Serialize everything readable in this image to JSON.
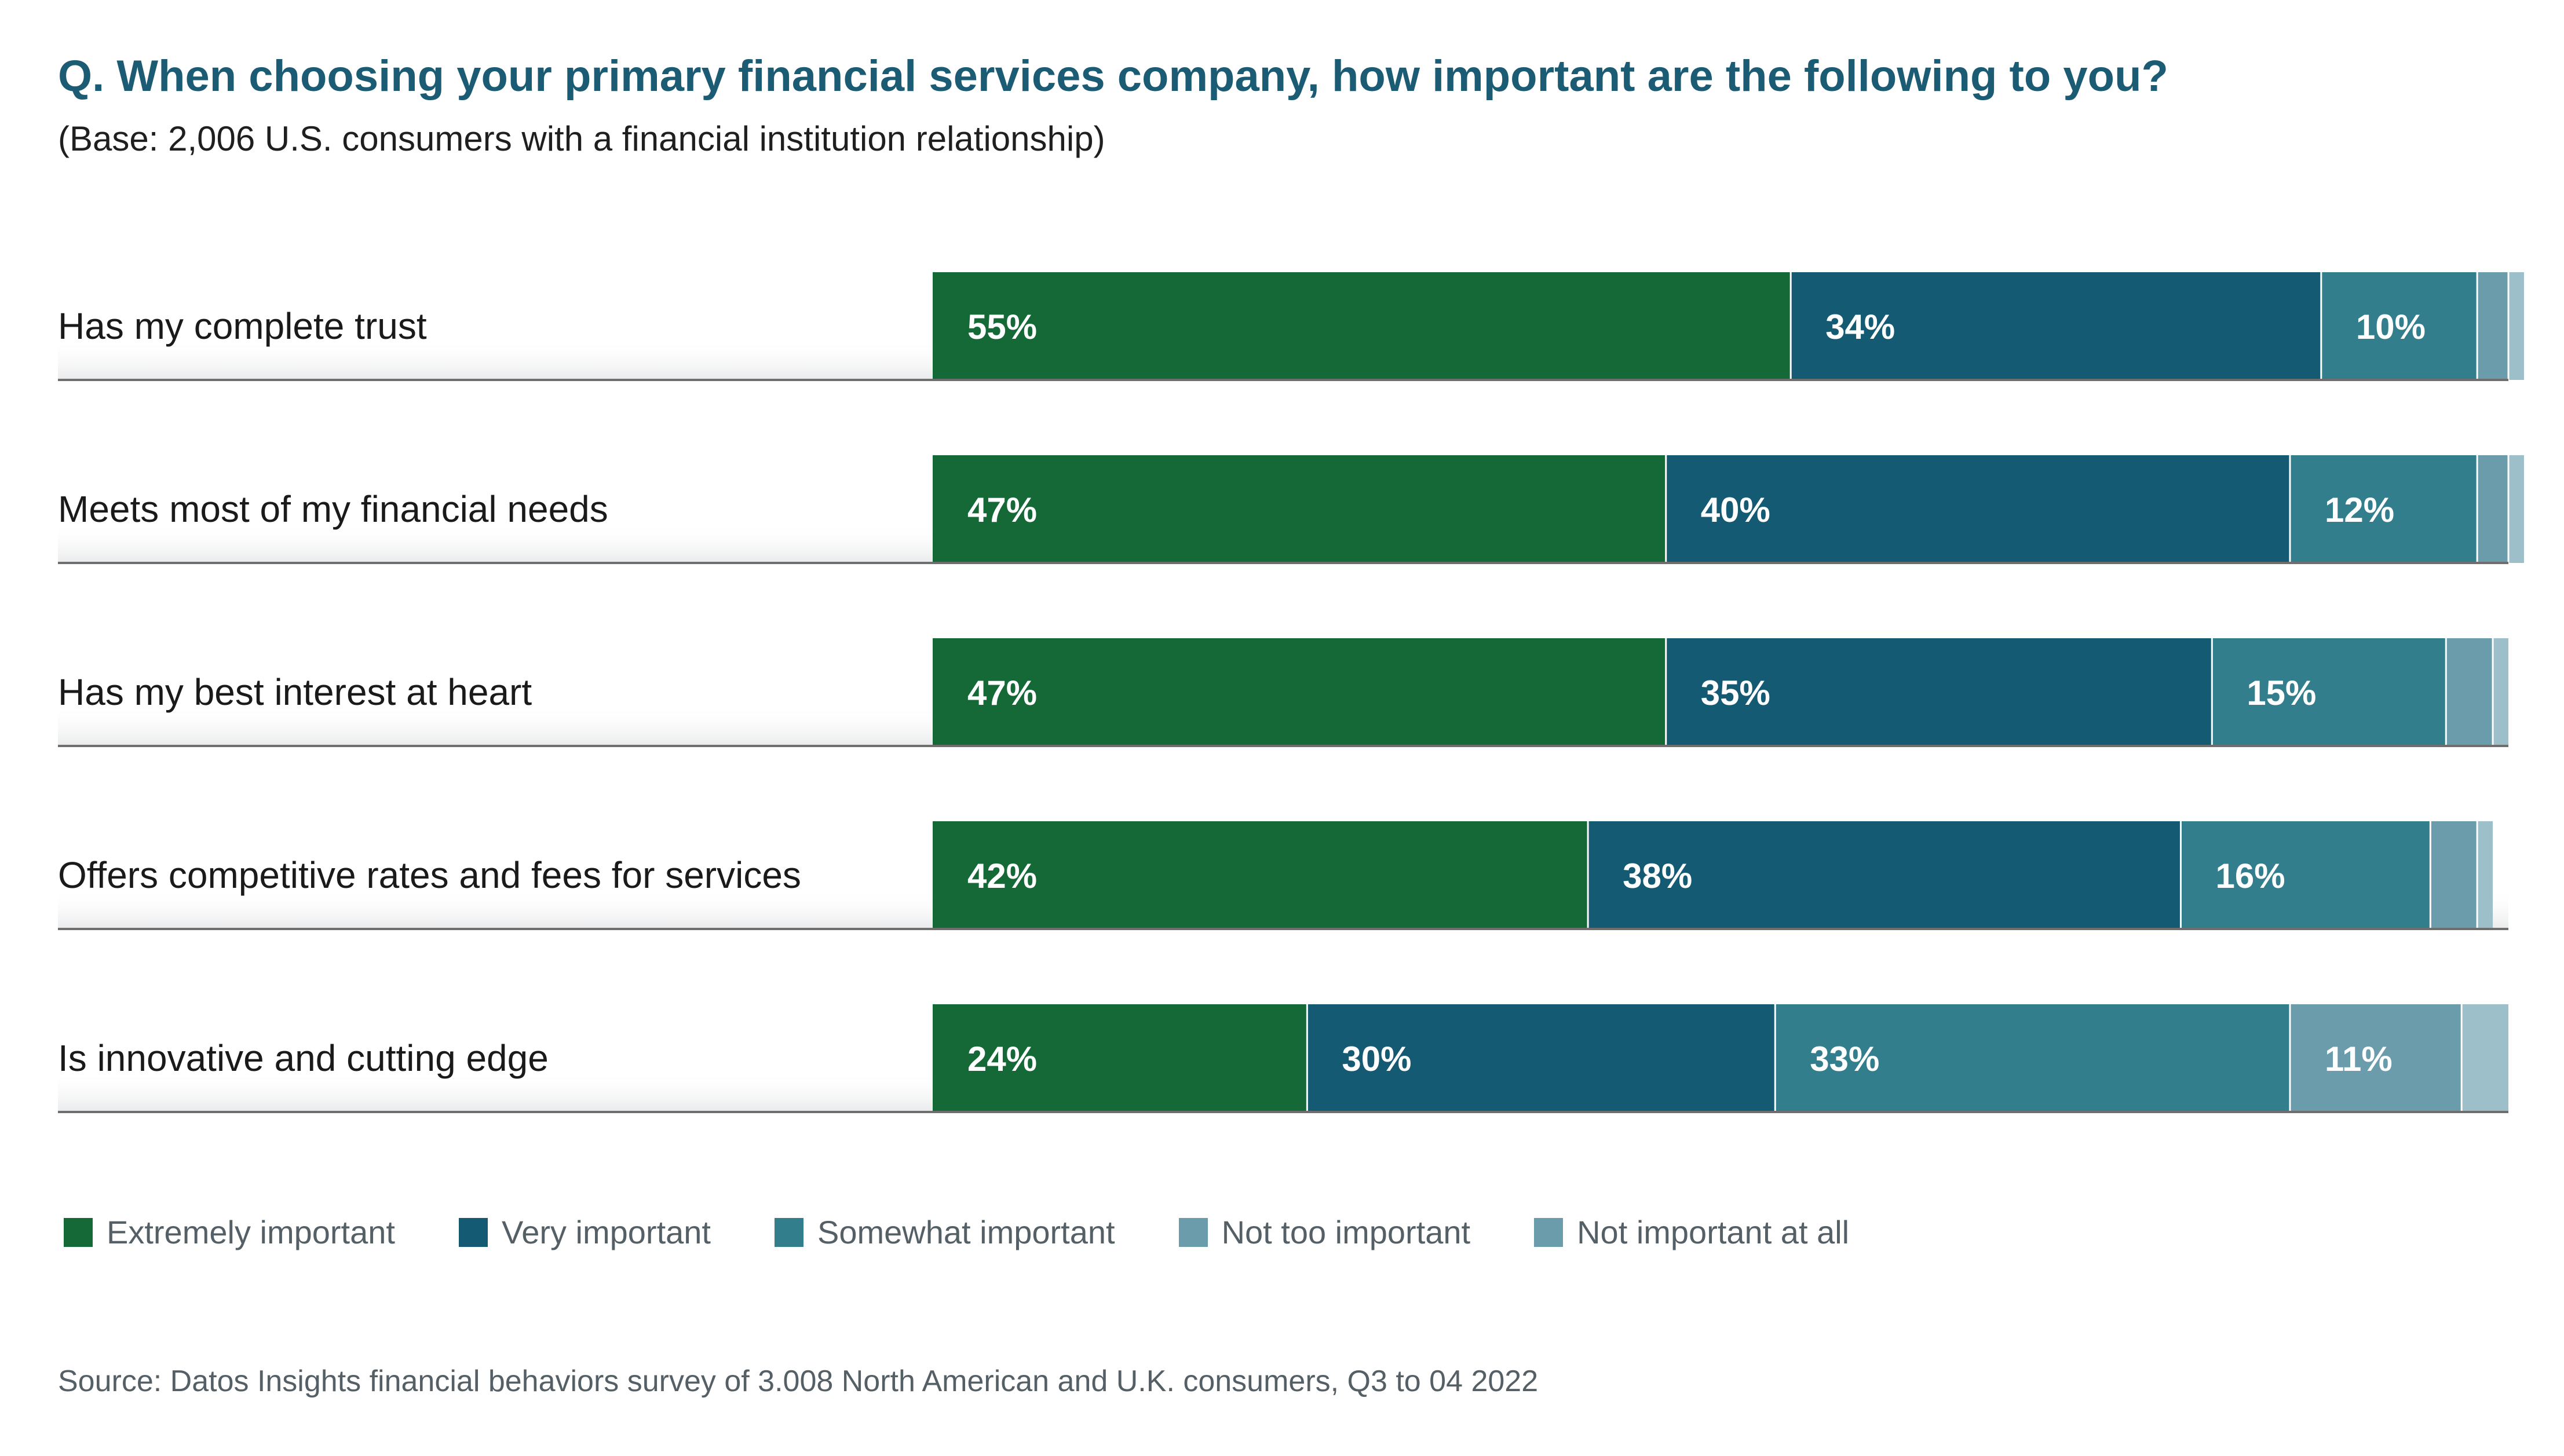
{
  "chart_data": {
    "type": "bar",
    "orientation": "horizontal",
    "stacked": true,
    "title": "Q. When choosing your primary financial services company, how important are the following to you?",
    "subtitle": "(Base: 2,006 U.S. consumers with a financial institution relationship)",
    "categories": [
      "Has my complete trust",
      "Meets most of my financial needs",
      "Has my best interest at heart",
      "Offers competitive rates and fees for services",
      "Is innovative and cutting edge"
    ],
    "series": [
      {
        "name": "Extremely important",
        "color": "#156937",
        "values": [
          55,
          47,
          47,
          42,
          24
        ],
        "labels": [
          "55%",
          "47%",
          "47%",
          "42%",
          "24%"
        ]
      },
      {
        "name": "Very important",
        "color": "#145a72",
        "values": [
          34,
          40,
          35,
          38,
          30
        ],
        "labels": [
          "34%",
          "40%",
          "35%",
          "38%",
          "30%"
        ]
      },
      {
        "name": "Somewhat important",
        "color": "#337e8c",
        "values": [
          10,
          12,
          15,
          16,
          33
        ],
        "labels": [
          "10%",
          "12%",
          "15%",
          "16%",
          "33%"
        ]
      },
      {
        "name": "Not too important",
        "color": "#6a9cab",
        "values": [
          2,
          2,
          3,
          3,
          11
        ],
        "labels": [
          "",
          "",
          "",
          "",
          "11%"
        ]
      },
      {
        "name": "Not important at all",
        "color": "#9cbfc9",
        "values": [
          1,
          1,
          1,
          1,
          3
        ],
        "labels": [
          "",
          "",
          "",
          "",
          ""
        ]
      }
    ],
    "xlim": [
      0,
      101
    ],
    "legend_position": "bottom-left",
    "grid": false
  },
  "legend_colors": [
    "#156937",
    "#145a72",
    "#337e8c",
    "#6a9cab",
    "#6a9cab"
  ],
  "source": "Source: Datos Insights financial behaviors survey of 3.008 North American and U.K. consumers, Q3 to 04 2022"
}
